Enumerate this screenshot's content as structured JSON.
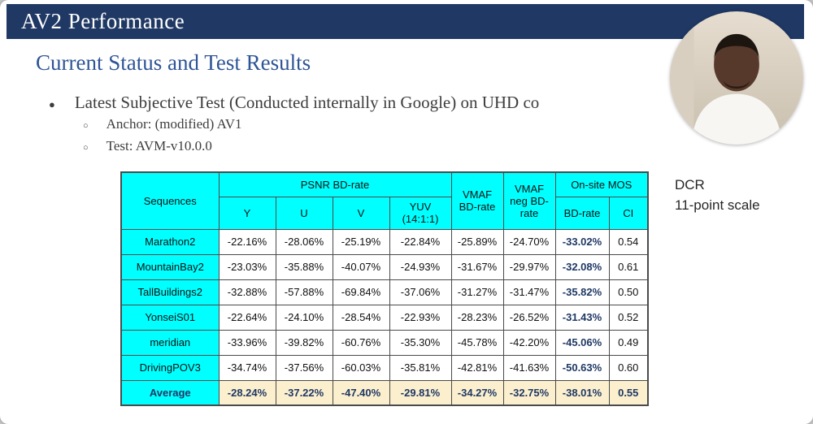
{
  "banner": {
    "title": "AV2 Performance"
  },
  "slide": {
    "subtitle": "Current Status and Test Results",
    "bullet_main": "Latest Subjective Test (Conducted internally in Google) on UHD co",
    "sub_bullets": [
      "Anchor: (modified) AV1",
      "Test: AVM-v10.0.0"
    ],
    "side_note_line1": "DCR",
    "side_note_line2": "11-point scale"
  },
  "colors": {
    "banner_bg": "#1F3864",
    "subtitle_blue": "#2E5496",
    "table_header_cyan": "#00FFFF",
    "average_row_bg": "#FBEFCE",
    "mos_text_navy": "#1F3864"
  },
  "table": {
    "headers": {
      "sequences": "Sequences",
      "psnr_group": "PSNR BD-rate",
      "y": "Y",
      "u": "U",
      "v": "V",
      "yuv": "YUV (14:1:1)",
      "vmaf": "VMAF BD-rate",
      "vmaf_neg": "VMAF neg BD-rate",
      "mos_group": "On-site MOS",
      "mos_bd": "BD-rate",
      "ci": "CI"
    },
    "rows": [
      {
        "sequence": "Marathon2",
        "is_average": false,
        "values": [
          "-22.16%",
          "-28.06%",
          "-25.19%",
          "-22.84%",
          "-25.89%",
          "-24.70%",
          "-33.02%",
          "0.54"
        ]
      },
      {
        "sequence": "MountainBay2",
        "is_average": false,
        "values": [
          "-23.03%",
          "-35.88%",
          "-40.07%",
          "-24.93%",
          "-31.67%",
          "-29.97%",
          "-32.08%",
          "0.61"
        ]
      },
      {
        "sequence": "TallBuildings2",
        "is_average": false,
        "values": [
          "-32.88%",
          "-57.88%",
          "-69.84%",
          "-37.06%",
          "-31.27%",
          "-31.47%",
          "-35.82%",
          "0.50"
        ]
      },
      {
        "sequence": "YonseiS01",
        "is_average": false,
        "values": [
          "-22.64%",
          "-24.10%",
          "-28.54%",
          "-22.93%",
          "-28.23%",
          "-26.52%",
          "-31.43%",
          "0.52"
        ]
      },
      {
        "sequence": "meridian",
        "is_average": false,
        "values": [
          "-33.96%",
          "-39.82%",
          "-60.76%",
          "-35.30%",
          "-45.78%",
          "-42.20%",
          "-45.06%",
          "0.49"
        ]
      },
      {
        "sequence": "DrivingPOV3",
        "is_average": false,
        "values": [
          "-34.74%",
          "-37.56%",
          "-60.03%",
          "-35.81%",
          "-42.81%",
          "-41.63%",
          "-50.63%",
          "0.60"
        ]
      },
      {
        "sequence": "Average",
        "is_average": true,
        "values": [
          "-28.24%",
          "-37.22%",
          "-47.40%",
          "-29.81%",
          "-34.27%",
          "-32.75%",
          "-38.01%",
          "0.55"
        ]
      }
    ]
  }
}
